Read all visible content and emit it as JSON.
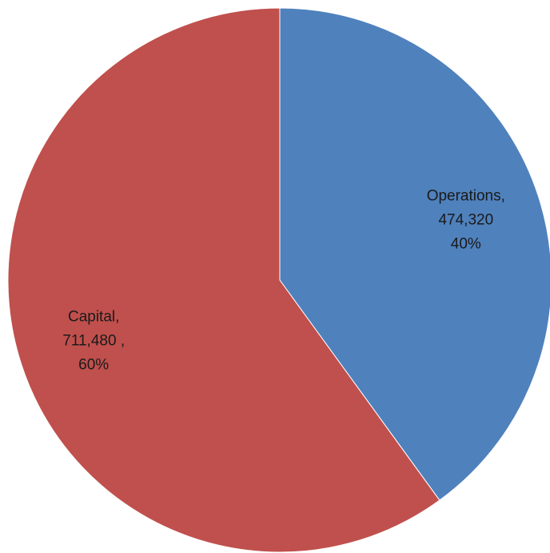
{
  "chart_data": {
    "type": "pie",
    "slices": [
      {
        "name": "Operations",
        "value": 474320,
        "percent": 40,
        "color": "#4F81BD",
        "label_lines": [
          "Operations,",
          "474,320",
          "40%"
        ]
      },
      {
        "name": "Capital",
        "value": 711480,
        "percent": 60,
        "color": "#C0504D",
        "label_lines": [
          "Capital,",
          "711,480 ,",
          "60%"
        ]
      }
    ],
    "start_angle_deg": 0,
    "direction": "clockwise",
    "legend": "none"
  }
}
